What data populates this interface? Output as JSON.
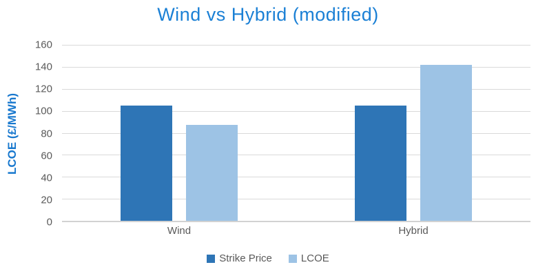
{
  "chart_data": {
    "type": "bar",
    "title": "Wind vs Hybrid (modified)",
    "categories": [
      "Wind",
      "Hybrid"
    ],
    "series": [
      {
        "name": "Strike Price",
        "color": "#2E75B6",
        "values": [
          105,
          105
        ]
      },
      {
        "name": "LCOE",
        "color": "#9DC3E5",
        "values": [
          87,
          142
        ]
      }
    ],
    "xlabel": "",
    "ylabel": "LCOE (£/MWh)",
    "ylim": [
      0,
      160
    ],
    "yticks": [
      0,
      20,
      40,
      60,
      80,
      100,
      120,
      140,
      160
    ],
    "grid": "horizontal",
    "legend_position": "bottom",
    "legend": [
      "Strike Price",
      "LCOE"
    ]
  },
  "colors": {
    "title": "#1B80D5",
    "axis_label": "#1878CE",
    "tick_text": "#595959",
    "gridline": "#D9D9D9",
    "axis_line": "#D2D2D2",
    "background": "#FFFFFF"
  }
}
